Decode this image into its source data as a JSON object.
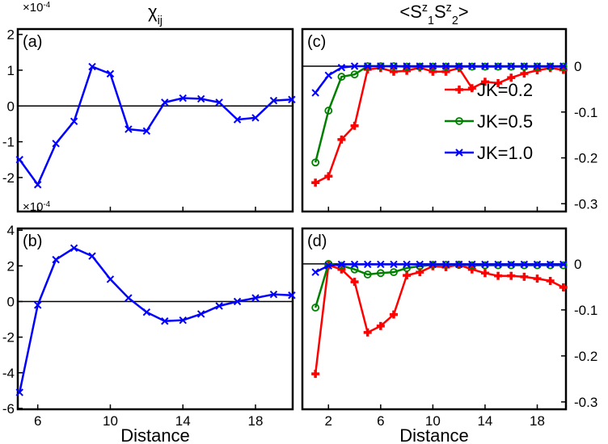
{
  "chart_data": [
    {
      "type": "line",
      "panel_label": "(a)",
      "title": [
        {
          "text": "χ"
        },
        {
          "text": "ij",
          "shift": "sub"
        }
      ],
      "multiplier": [
        {
          "text": "×10"
        },
        {
          "text": "-4",
          "shift": "super"
        }
      ],
      "x": [
        5,
        6,
        7,
        8,
        9,
        10,
        11,
        12,
        13,
        14,
        15,
        16,
        17,
        18,
        19,
        20
      ],
      "series": [
        {
          "name": "chi",
          "color": "#0000ff",
          "marker": "x",
          "values": [
            -1.5,
            -2.2,
            -1.05,
            -0.43,
            1.1,
            0.9,
            -0.65,
            -0.7,
            0.1,
            0.22,
            0.2,
            0.1,
            -0.38,
            -0.33,
            0.15,
            0.18
          ]
        }
      ],
      "xlim": [
        4.9,
        20.05
      ],
      "xticks": [
        6,
        10,
        14,
        18
      ],
      "show_xtick_labels": false,
      "ylim": [
        -2.95,
        2.15
      ],
      "yticks": [
        2,
        1,
        0,
        -1,
        -2
      ],
      "yaxis_side": "left",
      "hline": 0
    },
    {
      "type": "line",
      "panel_label": "(b)",
      "multiplier": [
        {
          "text": "×10"
        },
        {
          "text": "-4",
          "shift": "super"
        }
      ],
      "x_label": "Distance",
      "x": [
        5,
        6,
        7,
        8,
        9,
        10,
        11,
        12,
        13,
        14,
        15,
        16,
        17,
        18,
        19,
        20
      ],
      "series": [
        {
          "name": "chi",
          "color": "#0000ff",
          "marker": "x",
          "values": [
            -5.1,
            -0.2,
            2.35,
            3.0,
            2.55,
            1.25,
            0.2,
            -0.6,
            -1.1,
            -1.05,
            -0.7,
            -0.25,
            0,
            0.2,
            0.4,
            0.35
          ]
        }
      ],
      "xlim": [
        4.9,
        20.05
      ],
      "xticks": [
        6,
        10,
        14,
        18
      ],
      "show_xtick_labels": true,
      "ylim": [
        -6.05,
        4.1
      ],
      "yticks": [
        4,
        2,
        0,
        -2,
        -4,
        -6
      ],
      "yaxis_side": "left",
      "hline": 0
    },
    {
      "type": "line",
      "panel_label": "(c)",
      "title": [
        {
          "text": "<S"
        },
        {
          "text": "z",
          "shift": "super"
        },
        {
          "text": "1",
          "shift": "sub"
        },
        {
          "text": "S"
        },
        {
          "text": "z",
          "shift": "super"
        },
        {
          "text": "2",
          "shift": "sub"
        },
        {
          "text": ">"
        }
      ],
      "x": [
        1,
        2,
        3,
        4,
        5,
        6,
        7,
        8,
        9,
        10,
        11,
        12,
        13,
        14,
        15,
        16,
        17,
        18,
        19,
        20
      ],
      "series": [
        {
          "name": "JK=0.2",
          "color": "#ff0000",
          "marker": "plus",
          "values": [
            -0.254,
            -0.24,
            -0.16,
            -0.13,
            -0.007,
            -0.004,
            -0.012,
            -0.01,
            -0.003,
            -0.012,
            -0.012,
            -0.004,
            -0.048,
            -0.034,
            -0.037,
            -0.025,
            -0.016,
            -0.009,
            -0.004,
            -0.008
          ]
        },
        {
          "name": "JK=0.5",
          "color": "#007f00",
          "marker": "circle",
          "values": [
            -0.21,
            -0.097,
            -0.023,
            -0.018,
            0,
            0,
            0,
            -0.001,
            -0.001,
            -0.001,
            -0.001,
            -0.001,
            -0.001,
            -0.001,
            -0.001,
            -0.001,
            -0.001,
            -0.001,
            -0.001,
            -0.001
          ]
        },
        {
          "name": "JK=1.0",
          "color": "#0000ff",
          "marker": "x",
          "values": [
            -0.058,
            -0.02,
            -0.003,
            0,
            0,
            0,
            0,
            0,
            0,
            0,
            0,
            0,
            0,
            0,
            0,
            0,
            0,
            0,
            0,
            0
          ]
        }
      ],
      "legend": "center-right",
      "xlim": [
        0.0,
        20.2
      ],
      "xticks": [
        2,
        6,
        10,
        14,
        18
      ],
      "show_xtick_labels": false,
      "ylim": [
        -0.317,
        0.081
      ],
      "yticks": [
        0,
        -0.1,
        -0.2,
        -0.3
      ],
      "yaxis_side": "right",
      "hline": 0
    },
    {
      "type": "line",
      "panel_label": "(d)",
      "x_label": "Distance",
      "x": [
        1,
        2,
        3,
        4,
        5,
        6,
        7,
        8,
        9,
        10,
        11,
        12,
        13,
        14,
        15,
        16,
        17,
        18,
        19,
        20
      ],
      "series": [
        {
          "name": "JK=0.2",
          "color": "#ff0000",
          "marker": "plus",
          "values": [
            -0.239,
            -0.003,
            -0.012,
            -0.039,
            -0.149,
            -0.135,
            -0.11,
            -0.025,
            -0.018,
            -0.005,
            -0.007,
            -0.002,
            -0.012,
            -0.02,
            -0.026,
            -0.026,
            -0.028,
            -0.032,
            -0.037,
            -0.051
          ]
        },
        {
          "name": "JK=0.5",
          "color": "#007f00",
          "marker": "circle",
          "values": [
            -0.095,
            0,
            -0.004,
            -0.012,
            -0.023,
            -0.02,
            -0.018,
            -0.009,
            -0.005,
            -0.002,
            -0.002,
            -0.002,
            -0.003,
            -0.003,
            -0.003,
            -0.003,
            -0.003,
            -0.003,
            -0.003,
            -0.003
          ]
        },
        {
          "name": "JK=1.0",
          "color": "#0000ff",
          "marker": "x",
          "values": [
            -0.018,
            -0.004,
            -0.001,
            -0.001,
            -0.001,
            -0.001,
            -0.001,
            -0.001,
            -0.001,
            -0.001,
            -0.001,
            -0.001,
            -0.001,
            -0.001,
            -0.001,
            -0.001,
            -0.001,
            -0.001,
            -0.001,
            -0.001
          ]
        }
      ],
      "xlim": [
        0.0,
        20.2
      ],
      "xticks": [
        2,
        6,
        10,
        14,
        18
      ],
      "show_xtick_labels": true,
      "ylim": [
        -0.316,
        0.077
      ],
      "yticks": [
        0,
        -0.1,
        -0.2,
        -0.3
      ],
      "yaxis_side": "right",
      "hline": 0
    }
  ]
}
